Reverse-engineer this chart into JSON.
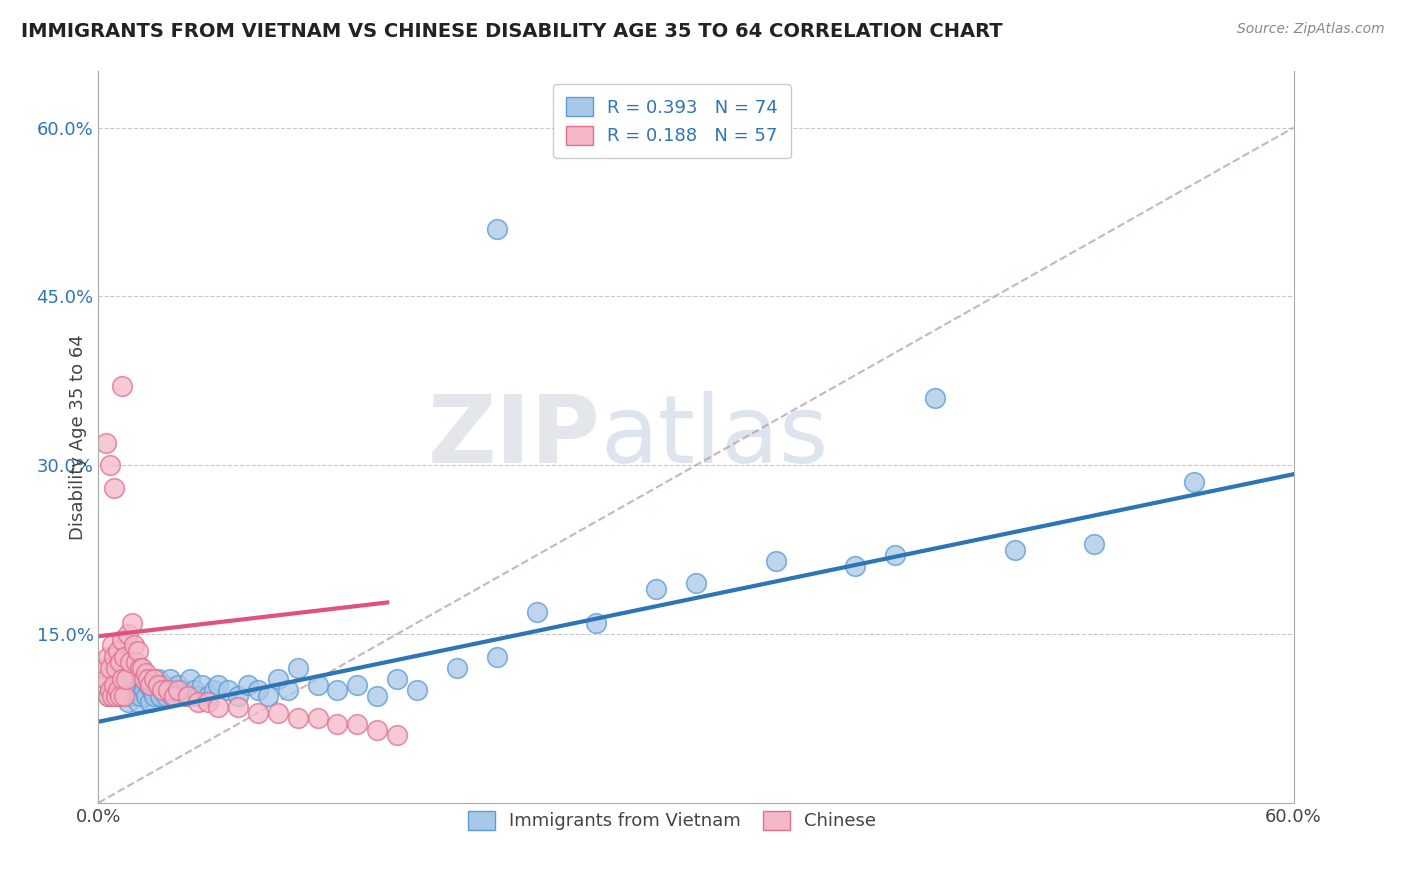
{
  "title": "IMMIGRANTS FROM VIETNAM VS CHINESE DISABILITY AGE 35 TO 64 CORRELATION CHART",
  "source": "Source: ZipAtlas.com",
  "ylabel": "Disability Age 35 to 64",
  "xlim": [
    0.0,
    0.6
  ],
  "ylim": [
    0.0,
    0.65
  ],
  "yticks": [
    0.15,
    0.3,
    0.45,
    0.6
  ],
  "ytick_labels": [
    "15.0%",
    "30.0%",
    "45.0%",
    "60.0%"
  ],
  "xtick_left": "0.0%",
  "xtick_right": "60.0%",
  "blue_color": "#a8c8e8",
  "blue_edge": "#5b9bd5",
  "pink_color": "#f4b8c8",
  "pink_edge": "#e07090",
  "trend_blue": "#2e75b6",
  "trend_pink": "#e05080",
  "ref_line_color": "#c0a0b0",
  "ytick_color": "#2e75b6",
  "legend1_label": "R = 0.393   N = 74",
  "legend2_label": "R = 0.188   N = 57",
  "legend_bottom_label1": "Immigrants from Vietnam",
  "legend_bottom_label2": "Chinese",
  "watermark_zip": "ZIP",
  "watermark_atlas": "atlas",
  "blue_x": [
    0.005,
    0.007,
    0.008,
    0.009,
    0.01,
    0.01,
    0.011,
    0.012,
    0.013,
    0.014,
    0.015,
    0.015,
    0.016,
    0.017,
    0.018,
    0.019,
    0.02,
    0.02,
    0.021,
    0.022,
    0.023,
    0.024,
    0.025,
    0.026,
    0.027,
    0.028,
    0.029,
    0.03,
    0.031,
    0.032,
    0.033,
    0.034,
    0.035,
    0.036,
    0.037,
    0.038,
    0.04,
    0.042,
    0.044,
    0.046,
    0.048,
    0.05,
    0.052,
    0.055,
    0.058,
    0.06,
    0.065,
    0.07,
    0.075,
    0.08,
    0.085,
    0.09,
    0.095,
    0.1,
    0.11,
    0.12,
    0.13,
    0.14,
    0.15,
    0.16,
    0.18,
    0.2,
    0.22,
    0.25,
    0.28,
    0.3,
    0.34,
    0.38,
    0.4,
    0.42,
    0.46,
    0.5,
    0.55,
    0.2
  ],
  "blue_y": [
    0.095,
    0.1,
    0.105,
    0.11,
    0.12,
    0.13,
    0.095,
    0.105,
    0.115,
    0.1,
    0.09,
    0.11,
    0.095,
    0.105,
    0.115,
    0.1,
    0.09,
    0.12,
    0.095,
    0.11,
    0.1,
    0.095,
    0.105,
    0.09,
    0.1,
    0.095,
    0.105,
    0.11,
    0.095,
    0.1,
    0.105,
    0.095,
    0.1,
    0.11,
    0.095,
    0.1,
    0.105,
    0.1,
    0.095,
    0.11,
    0.1,
    0.095,
    0.105,
    0.095,
    0.1,
    0.105,
    0.1,
    0.095,
    0.105,
    0.1,
    0.095,
    0.11,
    0.1,
    0.12,
    0.105,
    0.1,
    0.105,
    0.095,
    0.11,
    0.1,
    0.12,
    0.13,
    0.17,
    0.16,
    0.19,
    0.195,
    0.215,
    0.21,
    0.22,
    0.36,
    0.225,
    0.23,
    0.285,
    0.51
  ],
  "pink_x": [
    0.002,
    0.003,
    0.004,
    0.005,
    0.005,
    0.006,
    0.006,
    0.007,
    0.007,
    0.008,
    0.008,
    0.009,
    0.009,
    0.01,
    0.01,
    0.011,
    0.011,
    0.012,
    0.012,
    0.013,
    0.013,
    0.014,
    0.015,
    0.016,
    0.017,
    0.018,
    0.019,
    0.02,
    0.021,
    0.022,
    0.023,
    0.024,
    0.025,
    0.026,
    0.028,
    0.03,
    0.032,
    0.035,
    0.038,
    0.04,
    0.045,
    0.05,
    0.055,
    0.06,
    0.07,
    0.08,
    0.09,
    0.1,
    0.11,
    0.12,
    0.13,
    0.14,
    0.15,
    0.004,
    0.006,
    0.008,
    0.012
  ],
  "pink_y": [
    0.105,
    0.12,
    0.11,
    0.095,
    0.13,
    0.1,
    0.12,
    0.095,
    0.14,
    0.105,
    0.13,
    0.095,
    0.12,
    0.1,
    0.135,
    0.095,
    0.125,
    0.11,
    0.145,
    0.095,
    0.13,
    0.11,
    0.15,
    0.125,
    0.16,
    0.14,
    0.125,
    0.135,
    0.12,
    0.12,
    0.11,
    0.115,
    0.11,
    0.105,
    0.11,
    0.105,
    0.1,
    0.1,
    0.095,
    0.1,
    0.095,
    0.09,
    0.09,
    0.085,
    0.085,
    0.08,
    0.08,
    0.075,
    0.075,
    0.07,
    0.07,
    0.065,
    0.06,
    0.32,
    0.3,
    0.28,
    0.37
  ],
  "blue_trend_x0": 0.0,
  "blue_trend_y0": 0.072,
  "blue_trend_x1": 0.6,
  "blue_trend_y1": 0.292,
  "pink_trend_x0": 0.0,
  "pink_trend_y0": 0.148,
  "pink_trend_x1": 0.145,
  "pink_trend_y1": 0.178
}
